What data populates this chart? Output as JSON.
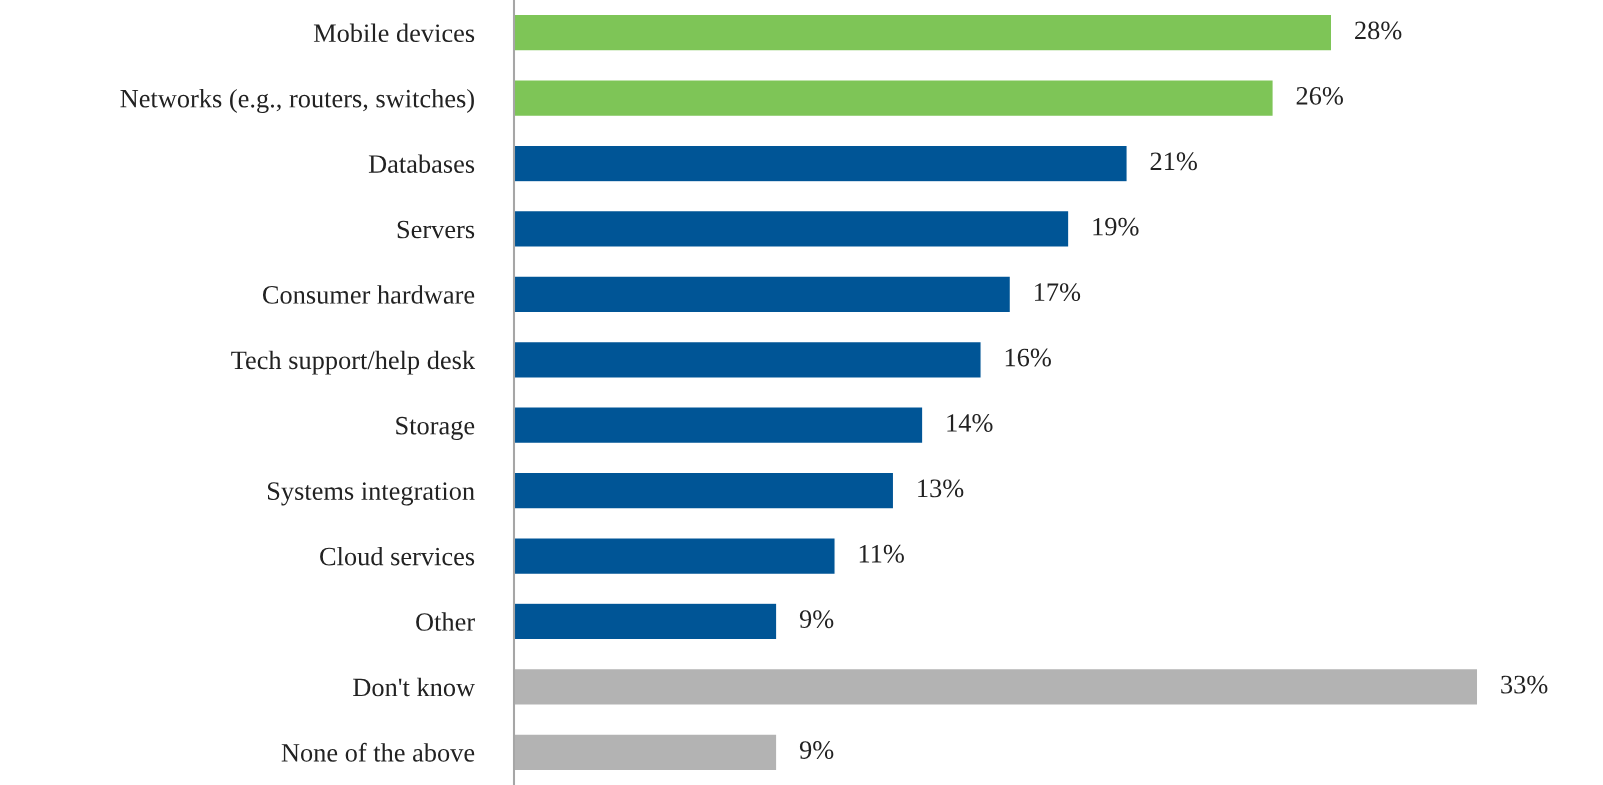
{
  "chart_data": {
    "type": "bar",
    "orientation": "horizontal",
    "categories": [
      "Mobile devices",
      "Networks (e.g., routers, switches)",
      "Databases",
      "Servers",
      "Consumer hardware",
      "Tech support/help desk",
      "Storage",
      "Systems integration",
      "Cloud services",
      "Other",
      "Don't know",
      "None of the above"
    ],
    "values": [
      28,
      26,
      21,
      19,
      17,
      16,
      14,
      13,
      11,
      9,
      33,
      9
    ],
    "colors": [
      "#7ec557",
      "#7ec557",
      "#005596",
      "#005596",
      "#005596",
      "#005596",
      "#005596",
      "#005596",
      "#005596",
      "#005596",
      "#b3b3b3",
      "#b3b3b3"
    ],
    "value_labels": [
      "28%",
      "26%",
      "21%",
      "19%",
      "17%",
      "16%",
      "14%",
      "13%",
      "11%",
      "9%",
      "33%",
      "9%"
    ],
    "grid": false,
    "legend": false
  }
}
